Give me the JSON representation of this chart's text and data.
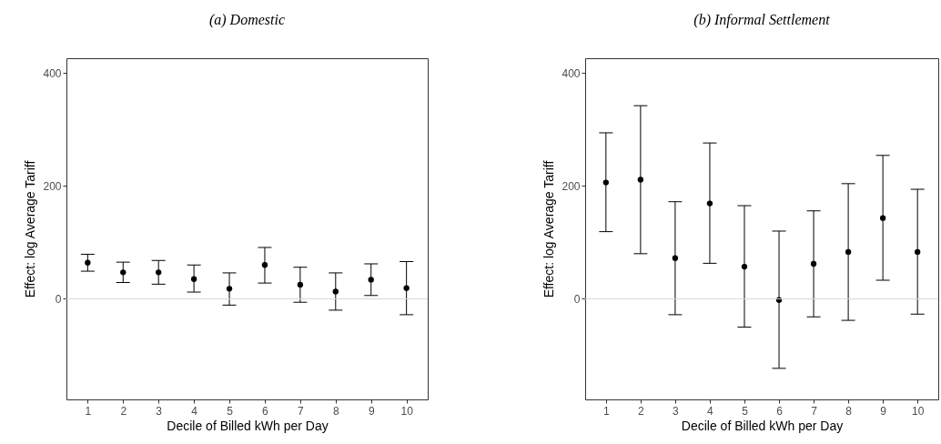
{
  "chart_data": [
    {
      "type": "scatter",
      "title": "(a) Domestic",
      "xlabel": "Decile of Billed kWh per Day",
      "ylabel": "Effect: log Average Tariff",
      "categories": [
        "1",
        "2",
        "3",
        "4",
        "5",
        "6",
        "7",
        "8",
        "9",
        "10"
      ],
      "series": [
        {
          "color": "#000000",
          "values": [
            64,
            47,
            47,
            35,
            18,
            60,
            25,
            13,
            34,
            19
          ],
          "errors": [
            [
              49,
              79
            ],
            [
              29,
              65
            ],
            [
              26,
              68
            ],
            [
              12,
              60
            ],
            [
              -11,
              46
            ],
            [
              28,
              91
            ],
            [
              -6,
              56
            ],
            [
              -20,
              46
            ],
            [
              6,
              62
            ],
            [
              -28,
              66
            ]
          ]
        }
      ],
      "ylim": [
        -178,
        426
      ],
      "yticks": [
        0,
        200,
        400
      ],
      "ref_lines": [
        {
          "axis": "y",
          "value": 0,
          "color": "#d9d9d9"
        }
      ],
      "grid": false,
      "marker": "circle"
    },
    {
      "type": "scatter",
      "title": "(b) Informal Settlement",
      "xlabel": "Decile of Billed kWh per Day",
      "ylabel": "Effect: log Average Tariff",
      "categories": [
        "1",
        "2",
        "3",
        "4",
        "5",
        "6",
        "7",
        "8",
        "9",
        "10"
      ],
      "series": [
        {
          "color": "#000000",
          "values": [
            206,
            211,
            72,
            169,
            57,
            -2,
            62,
            83,
            143,
            83
          ],
          "errors": [
            [
              119,
              294
            ],
            [
              80,
              342
            ],
            [
              -28,
              172
            ],
            [
              63,
              276
            ],
            [
              -50,
              165
            ],
            [
              -123,
              120
            ],
            [
              -32,
              156
            ],
            [
              -38,
              204
            ],
            [
              33,
              254
            ],
            [
              -27,
              194
            ]
          ]
        }
      ],
      "ylim": [
        -178,
        426
      ],
      "yticks": [
        0,
        200,
        400
      ],
      "ref_lines": [
        {
          "axis": "y",
          "value": 0,
          "color": "#d9d9d9"
        }
      ],
      "grid": false,
      "marker": "circle"
    }
  ]
}
